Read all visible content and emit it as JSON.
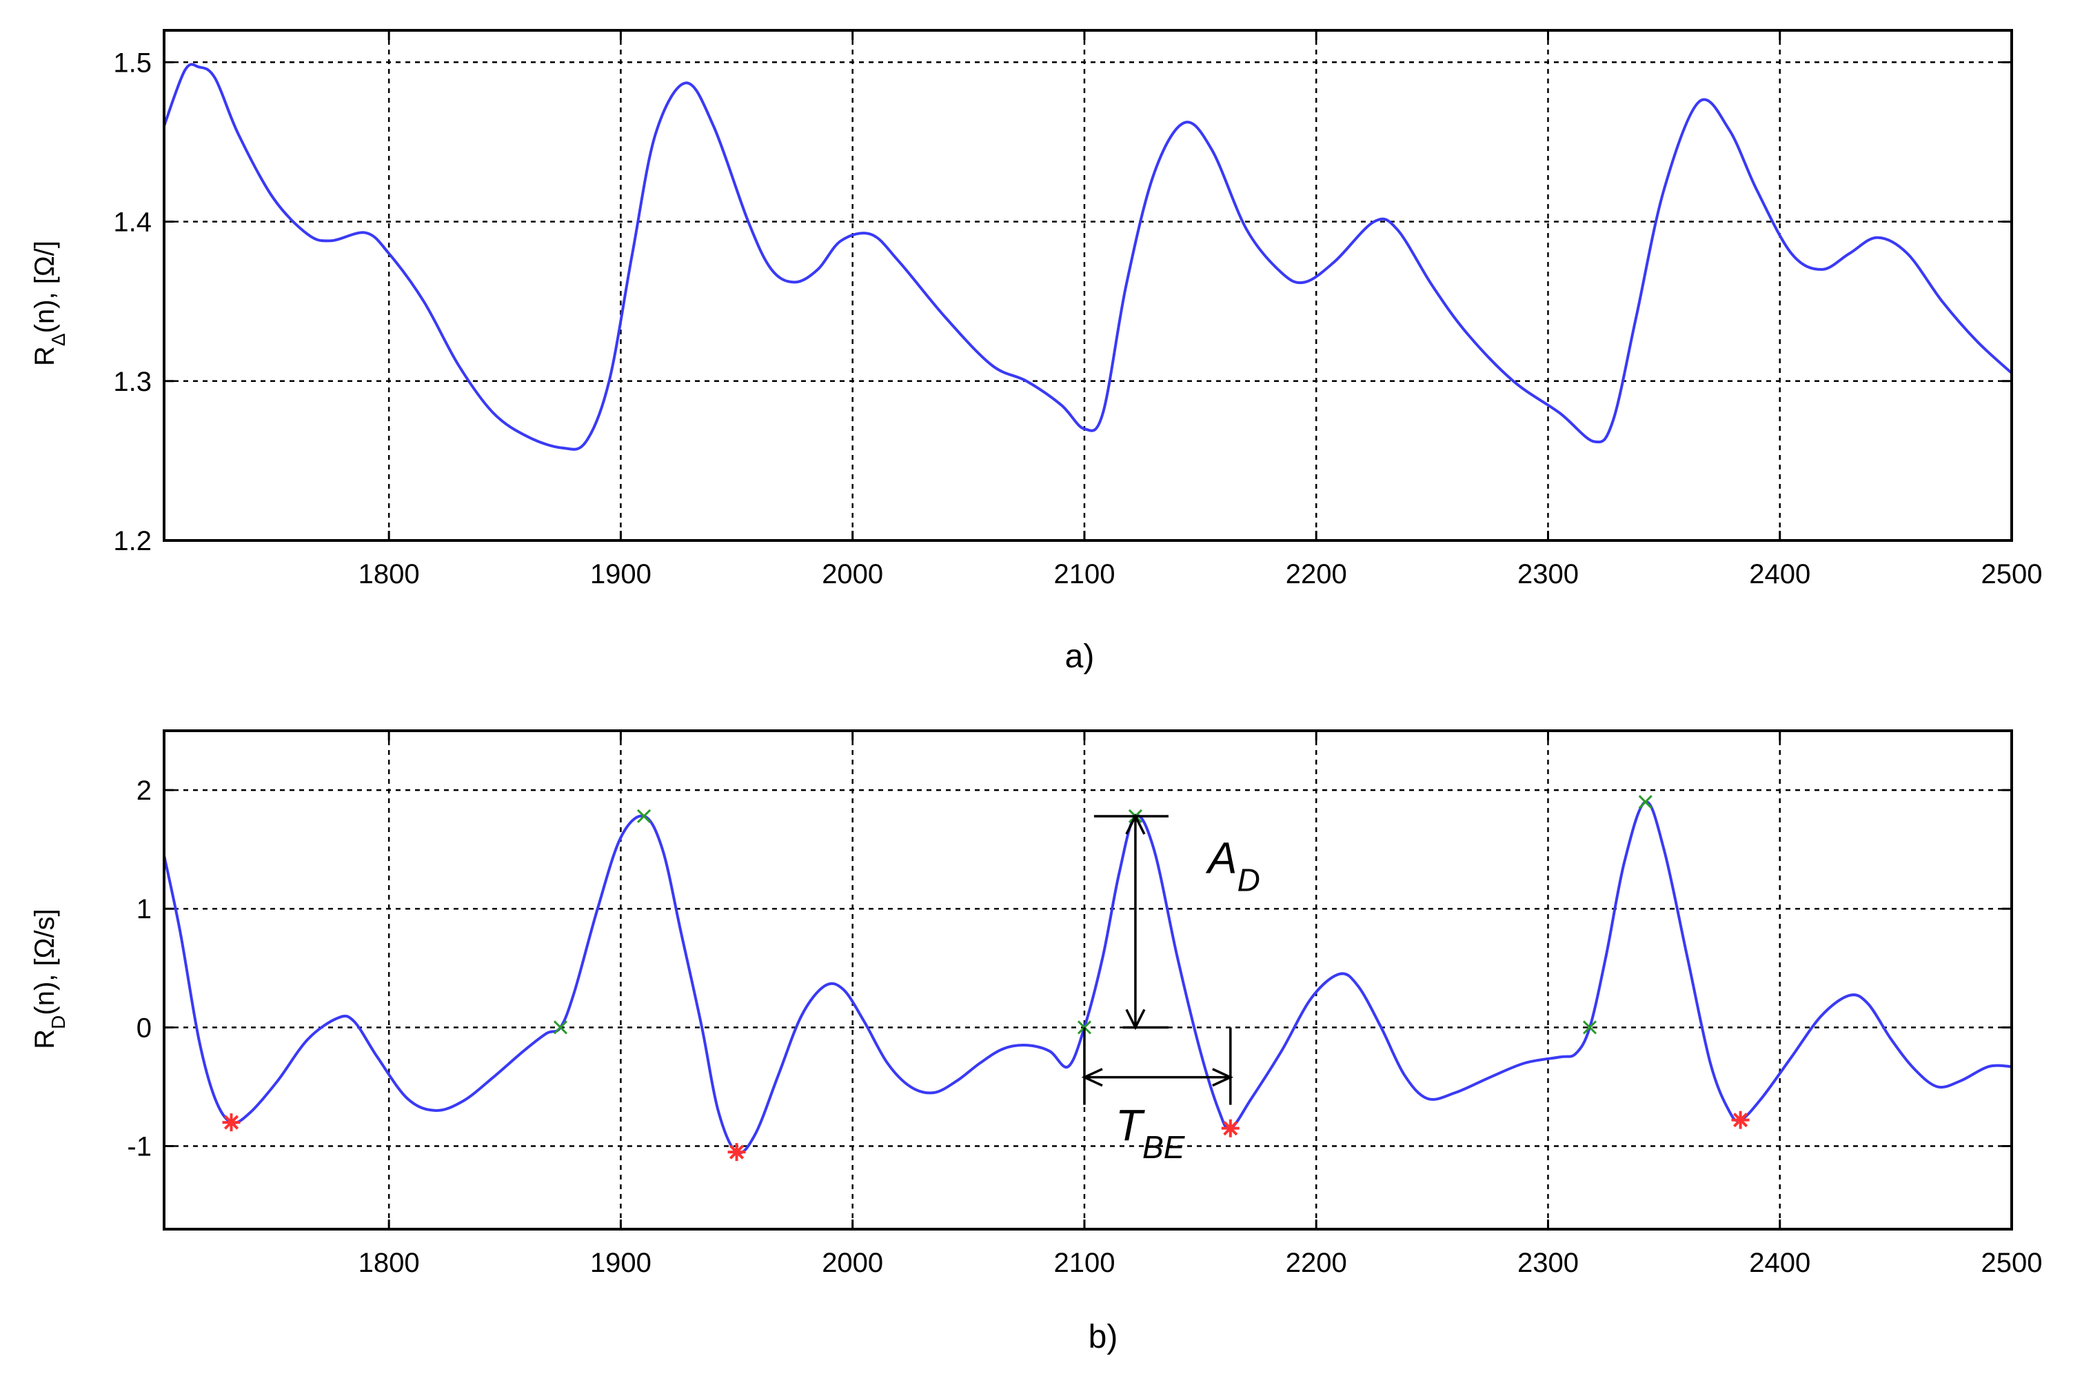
{
  "figure": {
    "colors": {
      "series": "#3a3af5",
      "maxima_marker": "#2a9a2a",
      "minima_marker": "#ff3030",
      "grid": "#000000"
    }
  },
  "chart_data": [
    {
      "type": "line",
      "caption": "a)",
      "ylabel": {
        "main": "R",
        "sub": "Δ",
        "rest": "(n), [Ω/]"
      },
      "xlim": [
        1703,
        2500
      ],
      "ylim": [
        1.2,
        1.52
      ],
      "xticks": [
        1800,
        1900,
        2000,
        2100,
        2200,
        2300,
        2400,
        2500
      ],
      "xtick_labels": [
        "1800",
        "1900",
        "2000",
        "2100",
        "2200",
        "2300",
        "2400",
        "2500"
      ],
      "yticks": [
        1.2,
        1.3,
        1.4,
        1.5
      ],
      "ytick_labels": [
        "1.2",
        "1.3",
        "1.4",
        "1.5"
      ],
      "grid": true,
      "series": [
        {
          "points": [
            [
              1703,
              1.46
            ],
            [
              1712,
              1.495
            ],
            [
              1718,
              1.497
            ],
            [
              1725,
              1.49
            ],
            [
              1735,
              1.455
            ],
            [
              1750,
              1.415
            ],
            [
              1765,
              1.392
            ],
            [
              1775,
              1.388
            ],
            [
              1790,
              1.393
            ],
            [
              1800,
              1.38
            ],
            [
              1815,
              1.35
            ],
            [
              1830,
              1.31
            ],
            [
              1845,
              1.28
            ],
            [
              1860,
              1.265
            ],
            [
              1875,
              1.258
            ],
            [
              1885,
              1.262
            ],
            [
              1895,
              1.3
            ],
            [
              1905,
              1.38
            ],
            [
              1915,
              1.455
            ],
            [
              1928,
              1.487
            ],
            [
              1940,
              1.46
            ],
            [
              1955,
              1.4
            ],
            [
              1965,
              1.37
            ],
            [
              1975,
              1.362
            ],
            [
              1985,
              1.37
            ],
            [
              1995,
              1.388
            ],
            [
              2008,
              1.392
            ],
            [
              2020,
              1.375
            ],
            [
              2040,
              1.34
            ],
            [
              2060,
              1.31
            ],
            [
              2075,
              1.3
            ],
            [
              2090,
              1.285
            ],
            [
              2100,
              1.27
            ],
            [
              2108,
              1.28
            ],
            [
              2118,
              1.36
            ],
            [
              2130,
              1.43
            ],
            [
              2143,
              1.462
            ],
            [
              2155,
              1.445
            ],
            [
              2170,
              1.395
            ],
            [
              2185,
              1.368
            ],
            [
              2195,
              1.362
            ],
            [
              2208,
              1.375
            ],
            [
              2225,
              1.4
            ],
            [
              2235,
              1.395
            ],
            [
              2250,
              1.36
            ],
            [
              2265,
              1.33
            ],
            [
              2285,
              1.3
            ],
            [
              2305,
              1.28
            ],
            [
              2320,
              1.262
            ],
            [
              2328,
              1.275
            ],
            [
              2338,
              1.34
            ],
            [
              2350,
              1.42
            ],
            [
              2365,
              1.475
            ],
            [
              2378,
              1.458
            ],
            [
              2390,
              1.42
            ],
            [
              2405,
              1.38
            ],
            [
              2418,
              1.37
            ],
            [
              2430,
              1.38
            ],
            [
              2442,
              1.39
            ],
            [
              2455,
              1.38
            ],
            [
              2470,
              1.35
            ],
            [
              2485,
              1.325
            ],
            [
              2500,
              1.305
            ]
          ]
        }
      ]
    },
    {
      "type": "line",
      "caption": "b)",
      "ylabel": {
        "main": "R",
        "sub": "D",
        "rest": "(n), [Ω/s]"
      },
      "xlim": [
        1703,
        2500
      ],
      "ylim": [
        -1.7,
        2.5
      ],
      "xticks": [
        1800,
        1900,
        2000,
        2100,
        2200,
        2300,
        2400,
        2500
      ],
      "xtick_labels": [
        "1800",
        "1900",
        "2000",
        "2100",
        "2200",
        "2300",
        "2400",
        "2500"
      ],
      "yticks": [
        -1,
        0,
        1,
        2
      ],
      "ytick_labels": [
        "-1",
        "0",
        "1",
        "2"
      ],
      "grid": true,
      "series": [
        {
          "points": [
            [
              1703,
              1.45
            ],
            [
              1710,
              0.8
            ],
            [
              1718,
              -0.1
            ],
            [
              1725,
              -0.6
            ],
            [
              1732,
              -0.8
            ],
            [
              1740,
              -0.72
            ],
            [
              1752,
              -0.45
            ],
            [
              1765,
              -0.1
            ],
            [
              1778,
              0.08
            ],
            [
              1785,
              0.05
            ],
            [
              1795,
              -0.25
            ],
            [
              1808,
              -0.6
            ],
            [
              1820,
              -0.7
            ],
            [
              1832,
              -0.62
            ],
            [
              1845,
              -0.42
            ],
            [
              1858,
              -0.2
            ],
            [
              1868,
              -0.05
            ],
            [
              1874,
              0
            ],
            [
              1880,
              0.3
            ],
            [
              1890,
              1.0
            ],
            [
              1900,
              1.6
            ],
            [
              1910,
              1.78
            ],
            [
              1918,
              1.5
            ],
            [
              1926,
              0.8
            ],
            [
              1935,
              0
            ],
            [
              1942,
              -0.7
            ],
            [
              1950,
              -1.05
            ],
            [
              1958,
              -0.9
            ],
            [
              1968,
              -0.4
            ],
            [
              1978,
              0.1
            ],
            [
              1988,
              0.35
            ],
            [
              1996,
              0.32
            ],
            [
              2005,
              0.05
            ],
            [
              2015,
              -0.3
            ],
            [
              2025,
              -0.5
            ],
            [
              2035,
              -0.55
            ],
            [
              2045,
              -0.45
            ],
            [
              2055,
              -0.3
            ],
            [
              2065,
              -0.18
            ],
            [
              2075,
              -0.15
            ],
            [
              2085,
              -0.2
            ],
            [
              2093,
              -0.33
            ],
            [
              2100,
              0
            ],
            [
              2108,
              0.6
            ],
            [
              2115,
              1.3
            ],
            [
              2122,
              1.78
            ],
            [
              2130,
              1.5
            ],
            [
              2140,
              0.6
            ],
            [
              2150,
              -0.2
            ],
            [
              2158,
              -0.7
            ],
            [
              2163,
              -0.85
            ],
            [
              2172,
              -0.6
            ],
            [
              2185,
              -0.2
            ],
            [
              2198,
              0.25
            ],
            [
              2210,
              0.45
            ],
            [
              2218,
              0.35
            ],
            [
              2228,
              0
            ],
            [
              2238,
              -0.4
            ],
            [
              2248,
              -0.6
            ],
            [
              2260,
              -0.55
            ],
            [
              2275,
              -0.42
            ],
            [
              2290,
              -0.3
            ],
            [
              2305,
              -0.25
            ],
            [
              2312,
              -0.22
            ],
            [
              2318,
              0
            ],
            [
              2325,
              0.6
            ],
            [
              2333,
              1.4
            ],
            [
              2342,
              1.9
            ],
            [
              2350,
              1.5
            ],
            [
              2360,
              0.6
            ],
            [
              2370,
              -0.3
            ],
            [
              2378,
              -0.7
            ],
            [
              2383,
              -0.78
            ],
            [
              2392,
              -0.6
            ],
            [
              2405,
              -0.25
            ],
            [
              2418,
              0.1
            ],
            [
              2430,
              0.27
            ],
            [
              2438,
              0.2
            ],
            [
              2448,
              -0.1
            ],
            [
              2458,
              -0.35
            ],
            [
              2468,
              -0.5
            ],
            [
              2478,
              -0.45
            ],
            [
              2490,
              -0.33
            ],
            [
              2500,
              -0.33
            ]
          ]
        }
      ],
      "markers": {
        "maxima_x": [
          [
            1874,
            0
          ],
          [
            1910,
            1.78
          ],
          [
            2100,
            0
          ],
          [
            2122,
            1.78
          ],
          [
            2318,
            0
          ],
          [
            2342,
            1.9
          ]
        ],
        "minima_star": [
          [
            1732,
            -0.8
          ],
          [
            1950,
            -1.05
          ],
          [
            2163,
            -0.85
          ],
          [
            2383,
            -0.78
          ]
        ]
      },
      "annotations": [
        {
          "name": "A_D",
          "label_main": "A",
          "label_sub": "D",
          "type": "vertical-arrow",
          "x": 2122,
          "y_from": 0,
          "y_to": 1.78
        },
        {
          "name": "T_BE",
          "label_main": "T",
          "label_sub": "BE",
          "type": "horizontal-arrow",
          "y": -0.42,
          "x_from": 2100,
          "x_to": 2163
        }
      ]
    }
  ]
}
